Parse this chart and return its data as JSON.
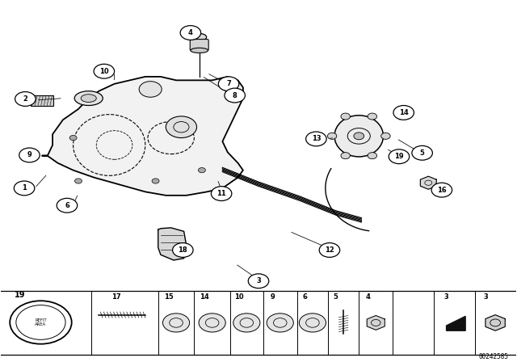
{
  "background_color": "#ffffff",
  "line_color": "#000000",
  "diagram_number": "00242585",
  "figsize": [
    6.4,
    4.48
  ],
  "dpi": 100
}
